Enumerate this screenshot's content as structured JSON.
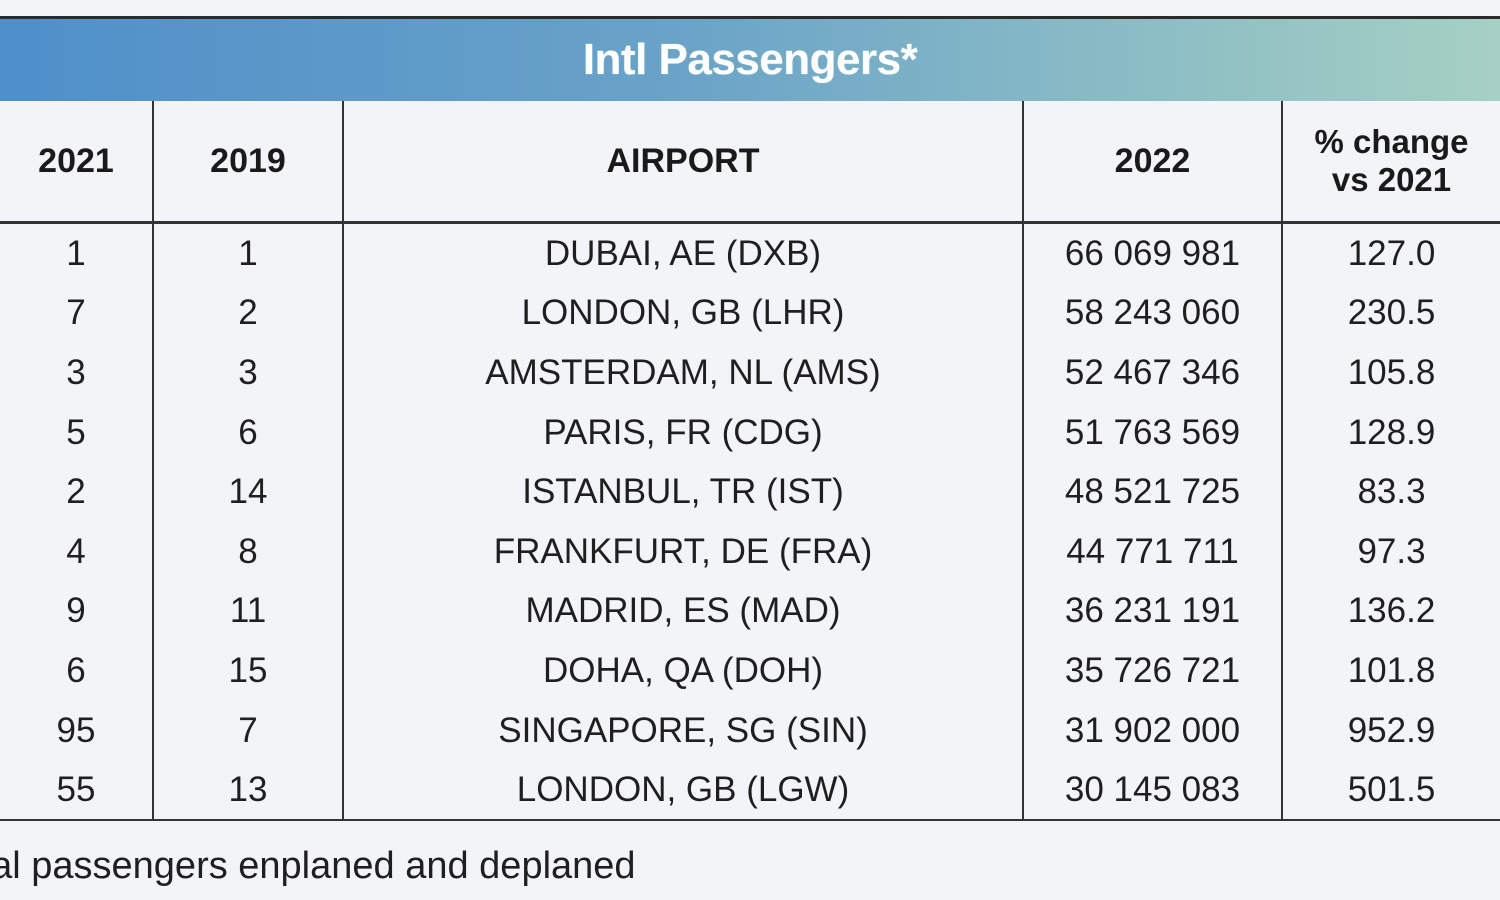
{
  "title": "Intl Passengers*",
  "columns": {
    "rank_2021": "2021",
    "rank_2019": "2019",
    "airport": "AIRPORT",
    "passengers_2022": "2022",
    "pct_change": "% change\nvs 2021"
  },
  "rows": [
    {
      "rank_2021": "1",
      "rank_2019": "1",
      "airport": "DUBAI, AE (DXB)",
      "passengers_2022": "66 069 981",
      "pct_change": "127.0"
    },
    {
      "rank_2021": "7",
      "rank_2019": "2",
      "airport": "LONDON, GB (LHR)",
      "passengers_2022": "58 243 060",
      "pct_change": "230.5"
    },
    {
      "rank_2021": "3",
      "rank_2019": "3",
      "airport": "AMSTERDAM, NL (AMS)",
      "passengers_2022": "52 467 346",
      "pct_change": "105.8"
    },
    {
      "rank_2021": "5",
      "rank_2019": "6",
      "airport": "PARIS, FR (CDG)",
      "passengers_2022": "51 763 569",
      "pct_change": "128.9"
    },
    {
      "rank_2021": "2",
      "rank_2019": "14",
      "airport": "ISTANBUL, TR (IST)",
      "passengers_2022": "48 521 725",
      "pct_change": "83.3"
    },
    {
      "rank_2021": "4",
      "rank_2019": "8",
      "airport": "FRANKFURT, DE (FRA)",
      "passengers_2022": "44 771 711",
      "pct_change": "97.3"
    },
    {
      "rank_2021": "9",
      "rank_2019": "11",
      "airport": "MADRID, ES (MAD)",
      "passengers_2022": "36 231 191",
      "pct_change": "136.2"
    },
    {
      "rank_2021": "6",
      "rank_2019": "15",
      "airport": "DOHA, QA (DOH)",
      "passengers_2022": "35 726 721",
      "pct_change": "101.8"
    },
    {
      "rank_2021": "95",
      "rank_2019": "7",
      "airport": "SINGAPORE, SG (SIN)",
      "passengers_2022": "31 902 000",
      "pct_change": "952.9"
    },
    {
      "rank_2021": "55",
      "rank_2019": "13",
      "airport": "LONDON, GB (LGW)",
      "passengers_2022": "30 145 083",
      "pct_change": "501.5"
    }
  ],
  "footnote": "nal passengers enplaned and deplaned",
  "colors": {
    "banner_start": "#4f8fca",
    "banner_end": "#a6d0c3",
    "rule": "#333333",
    "background": "#f3f4f7"
  }
}
